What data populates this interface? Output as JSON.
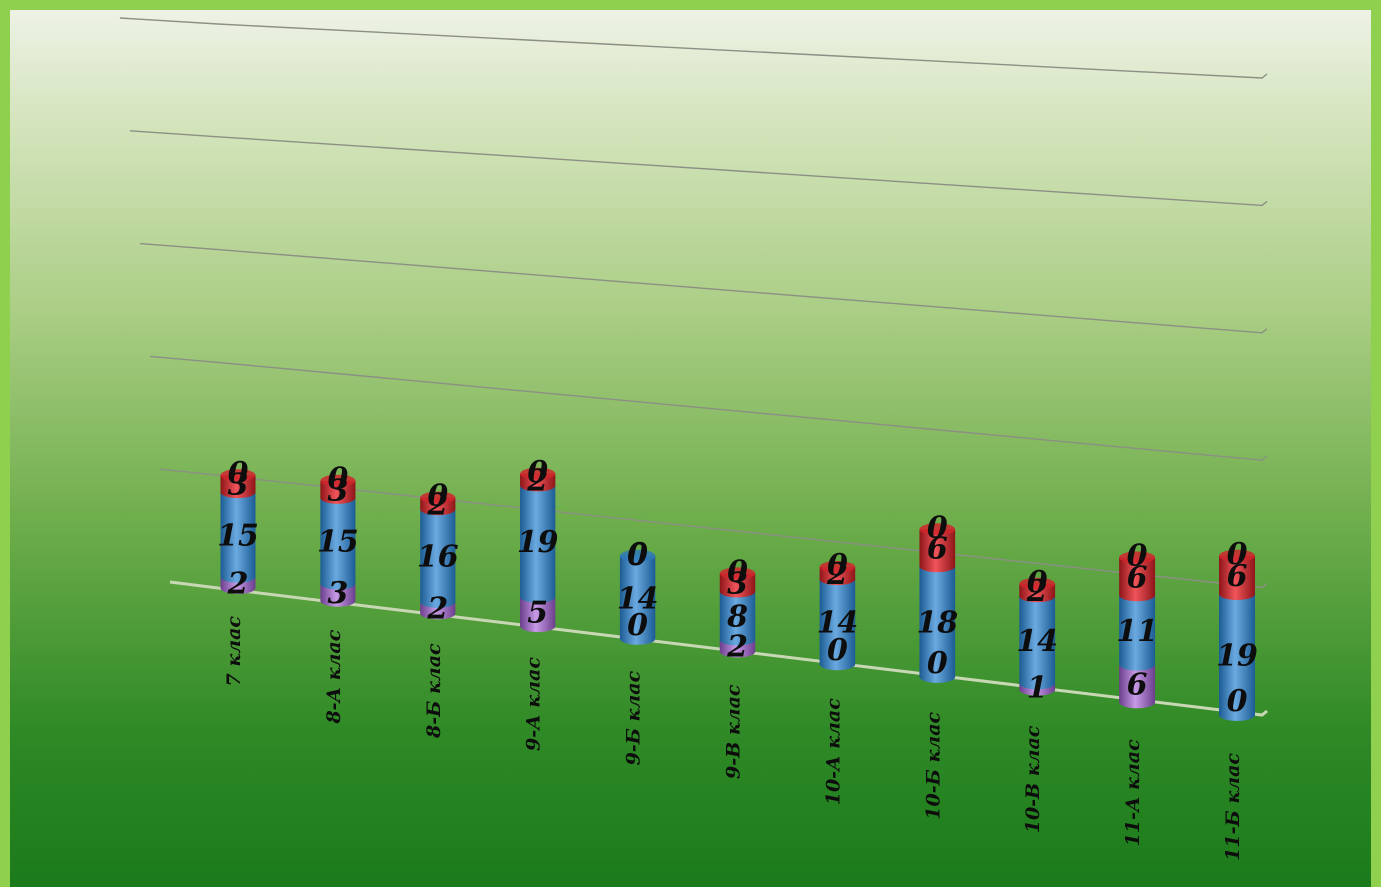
{
  "chart_data": {
    "type": "bar",
    "stacked": true,
    "orientation": "vertical",
    "categories": [
      "7 клас",
      "8-А клас",
      "8-Б клас",
      "9-А клас",
      "9-Б клас",
      "9-В клас",
      "10-А клас",
      "10-Б клас",
      "10-В клас",
      "11-А клас",
      "11-Б клас"
    ],
    "series": [
      {
        "values": [
          2,
          3,
          2,
          5,
          0,
          2,
          0,
          0,
          1,
          6,
          0
        ],
        "color": "#9a5fc4"
      },
      {
        "values": [
          15,
          15,
          16,
          19,
          14,
          8,
          14,
          18,
          14,
          11,
          19
        ],
        "color": "#2f79b8"
      },
      {
        "values": [
          3,
          3,
          2,
          2,
          0,
          3,
          2,
          6,
          2,
          6,
          6
        ],
        "color": "#d0262d"
      },
      {
        "values": [
          0,
          0,
          0,
          0,
          0,
          0,
          0,
          0,
          0,
          0,
          0
        ],
        "color": "#e8a23a"
      }
    ],
    "ylim": [
      0,
      100
    ],
    "grid": true,
    "legend": false
  }
}
